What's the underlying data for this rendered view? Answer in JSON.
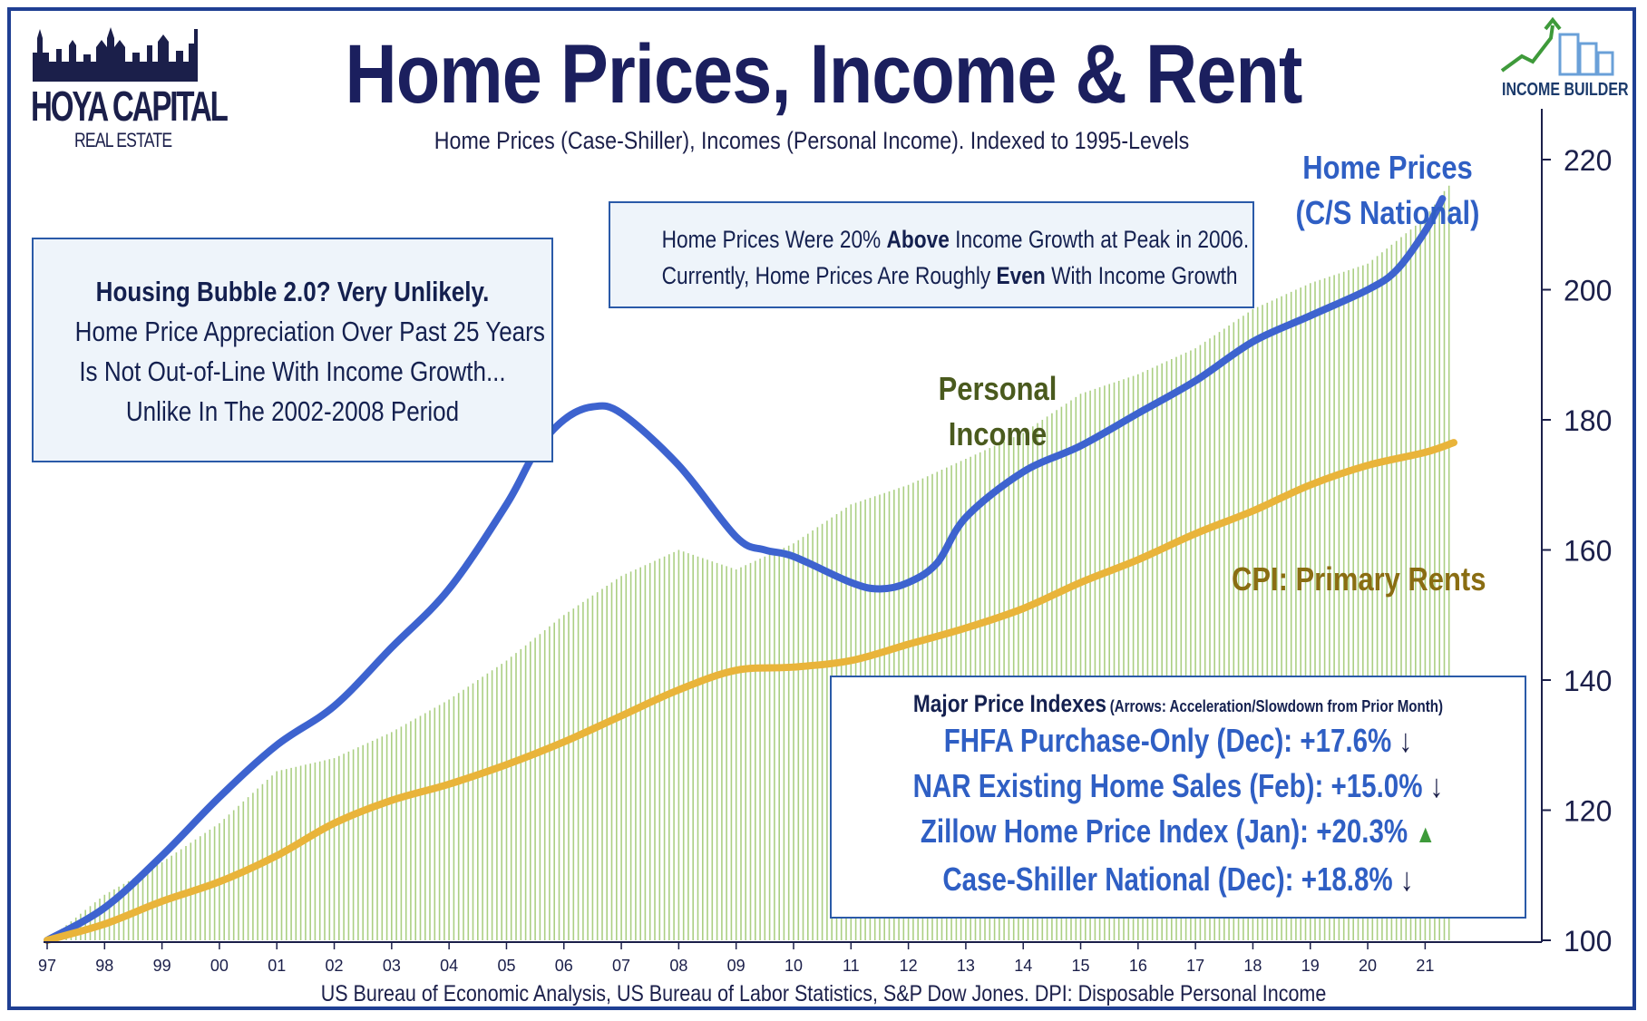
{
  "title": "Home Prices, Income & Rent",
  "subtitle": "Home Prices (Case-Shiller), Incomes (Personal Income). Indexed to 1995-Levels",
  "source": "US Bureau of Economic Analysis, US Bureau of Labor Statistics, S&P Dow Jones. DPI: Disposable Personal Income",
  "logo_left": {
    "line1": "HOYA CAPITAL",
    "line2": "REAL ESTATE"
  },
  "logo_right": {
    "text": "INCOME BUILDER"
  },
  "colors": {
    "home_prices": "#3d63cf",
    "rents": "#e9b43a",
    "income": "#8fbf5a",
    "navy": "#1b1f5e",
    "olive": "#4a5a1e",
    "gold_label": "#8a6d12",
    "box_border": "#2a5aa8",
    "box_fill": "#eef4fa"
  },
  "annotations": {
    "bubble": {
      "title": "Housing Bubble 2.0? Very Unlikely.",
      "line1": "Home Price Appreciation Over Past 25 Years",
      "line2": "Is Not Out-of-Line With Income Growth...",
      "line3": "Unlike In The 2002-2008 Period"
    },
    "peak": {
      "l1a": "Home Prices Were 20% ",
      "l1b": "Above",
      "l1c": " Income Growth at Peak in 2006.",
      "l2a": "Currently, Home Prices Are Roughly ",
      "l2b": "Even",
      "l2c": " With Income Growth"
    },
    "indexes": {
      "title": "Major Price Indexes",
      "note": "(Arrows: Acceleration/Slowdown from Prior Month)",
      "items": [
        {
          "text": "FHFA Purchase-Only (Dec): +17.6%",
          "arrow": "↓"
        },
        {
          "text": "NAR Existing Home Sales (Feb): +15.0%",
          "arrow": "↓"
        },
        {
          "text": "Zillow Home Price Index (Jan): +20.3%",
          "arrow": "▲"
        },
        {
          "text": "Case-Shiller National (Dec): +18.8%",
          "arrow": "↓"
        }
      ]
    }
  },
  "series_labels": {
    "home_l1": "Home Prices",
    "home_l2": "(C/S National)",
    "income_l1": "Personal",
    "income_l2": "Income",
    "rents": "CPI: Primary Rents"
  },
  "chart_data": {
    "type": "line",
    "x_tick_labels": [
      "97",
      "98",
      "99",
      "00",
      "01",
      "02",
      "03",
      "04",
      "05",
      "06",
      "07",
      "08",
      "09",
      "10",
      "11",
      "12",
      "13",
      "14",
      "15",
      "16",
      "17",
      "18",
      "19",
      "20",
      "21"
    ],
    "ylim": [
      100,
      220
    ],
    "yticks": [
      100,
      120,
      140,
      160,
      180,
      200,
      220
    ],
    "y_axis_side": "right",
    "series": [
      {
        "name": "Home Prices",
        "style": "line",
        "x": [
          97,
          98,
          99,
          100,
          101,
          102,
          103,
          104,
          105,
          105.5,
          106,
          106.5,
          107,
          108,
          109,
          109.5,
          110,
          111,
          111.5,
          112,
          112.5,
          113,
          114,
          115,
          116,
          117,
          118,
          119,
          120,
          120.5,
          121,
          121.3
        ],
        "y": [
          100,
          105,
          113,
          122,
          130,
          136,
          145,
          154,
          167,
          175,
          180,
          182,
          181,
          173,
          162,
          160,
          159,
          155,
          154,
          155,
          158,
          165,
          172,
          176,
          181,
          186,
          192,
          196,
          200,
          203,
          209,
          214
        ]
      },
      {
        "name": "Personal Income",
        "style": "bars",
        "x": [
          97,
          98,
          99,
          100,
          101,
          102,
          103,
          104,
          105,
          106,
          107,
          108,
          109,
          110,
          111,
          112,
          113,
          114,
          115,
          116,
          117,
          118,
          119,
          120,
          121,
          121.4
        ],
        "y": [
          100,
          107,
          112,
          118,
          126,
          128,
          132,
          137,
          143,
          150,
          156,
          160,
          157,
          161,
          167,
          170,
          174,
          178,
          184,
          187,
          191,
          197,
          201,
          204,
          211,
          216
        ]
      },
      {
        "name": "CPI: Primary Rents",
        "style": "line",
        "x": [
          97,
          98,
          99,
          100,
          101,
          102,
          103,
          104,
          105,
          106,
          107,
          108,
          109,
          110,
          111,
          112,
          113,
          114,
          115,
          116,
          117,
          118,
          119,
          120,
          121,
          121.5
        ],
        "y": [
          100,
          102.5,
          106,
          109,
          113,
          118,
          121.5,
          124,
          127,
          130.5,
          134.5,
          138.5,
          141.5,
          142,
          143,
          145.5,
          148,
          151,
          155,
          158.5,
          162.5,
          166,
          170,
          173,
          175,
          176.5
        ]
      }
    ]
  }
}
